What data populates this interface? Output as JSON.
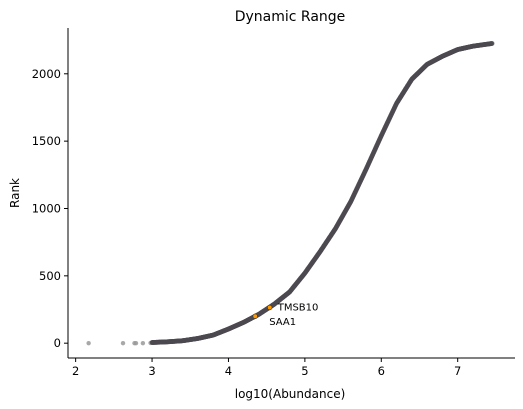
{
  "chart_data": {
    "type": "scatter",
    "title": "Dynamic Range",
    "xlabel": "log10(Abundance)",
    "ylabel": "Rank",
    "xlim": [
      1.9,
      7.75
    ],
    "ylim": [
      -110,
      2340
    ],
    "xticks": [
      2,
      3,
      4,
      5,
      6,
      7
    ],
    "yticks": [
      0,
      500,
      1000,
      1500,
      2000
    ],
    "grid": false,
    "colors": {
      "points": "#4d4950",
      "outliers": "#999999",
      "highlight": "#ff9900"
    },
    "outlier_points": [
      {
        "x": 2.17,
        "y": 0
      },
      {
        "x": 2.62,
        "y": 0
      },
      {
        "x": 2.77,
        "y": 0
      },
      {
        "x": 2.79,
        "y": 0
      },
      {
        "x": 2.88,
        "y": 0
      },
      {
        "x": 2.98,
        "y": 2
      }
    ],
    "curve_points": [
      {
        "x": 3.0,
        "y": 5
      },
      {
        "x": 3.2,
        "y": 10
      },
      {
        "x": 3.4,
        "y": 18
      },
      {
        "x": 3.6,
        "y": 35
      },
      {
        "x": 3.8,
        "y": 60
      },
      {
        "x": 4.0,
        "y": 105
      },
      {
        "x": 4.2,
        "y": 155
      },
      {
        "x": 4.4,
        "y": 215
      },
      {
        "x": 4.6,
        "y": 290
      },
      {
        "x": 4.8,
        "y": 380
      },
      {
        "x": 5.0,
        "y": 520
      },
      {
        "x": 5.2,
        "y": 680
      },
      {
        "x": 5.4,
        "y": 850
      },
      {
        "x": 5.6,
        "y": 1050
      },
      {
        "x": 5.8,
        "y": 1290
      },
      {
        "x": 6.0,
        "y": 1540
      },
      {
        "x": 6.2,
        "y": 1780
      },
      {
        "x": 6.4,
        "y": 1960
      },
      {
        "x": 6.6,
        "y": 2070
      },
      {
        "x": 6.8,
        "y": 2130
      },
      {
        "x": 7.0,
        "y": 2180
      },
      {
        "x": 7.2,
        "y": 2205
      },
      {
        "x": 7.45,
        "y": 2225
      }
    ],
    "highlighted": [
      {
        "name": "TMSB10",
        "x": 4.54,
        "y": 265
      },
      {
        "name": "SAA1",
        "x": 4.35,
        "y": 200
      }
    ]
  }
}
